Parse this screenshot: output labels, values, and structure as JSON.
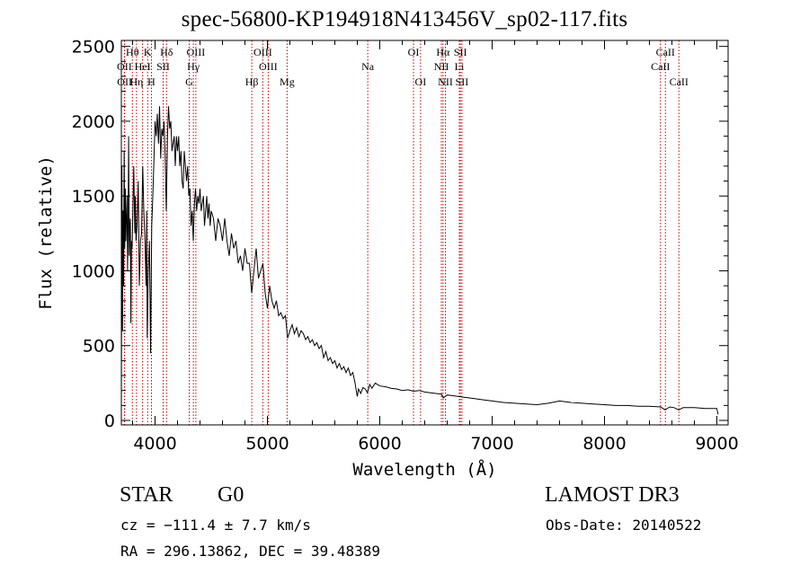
{
  "chart_data": {
    "type": "line",
    "title": "spec-56800-KP194918N413456V_sp02-117.fits",
    "xlabel": "Wavelength (Å)",
    "ylabel": "Flux (relative)",
    "xlim": [
      3700,
      9100
    ],
    "ylim": [
      -30,
      2540
    ],
    "x_ticks": [
      4000,
      5000,
      6000,
      7000,
      8000,
      9000
    ],
    "x_tick_labels": [
      "4000",
      "5000",
      "6000",
      "7000",
      "8000",
      "9000"
    ],
    "y_ticks": [
      0,
      500,
      1000,
      1500,
      2000,
      2500
    ],
    "y_tick_labels": [
      "0",
      "500",
      "1000",
      "1500",
      "2000",
      "2500"
    ],
    "series": [
      {
        "name": "flux",
        "points": [
          [
            3700,
            10
          ],
          [
            3705,
            1700
          ],
          [
            3710,
            600
          ],
          [
            3715,
            1400
          ],
          [
            3720,
            900
          ],
          [
            3725,
            1800
          ],
          [
            3730,
            1150
          ],
          [
            3735,
            1550
          ],
          [
            3740,
            1200
          ],
          [
            3745,
            1350
          ],
          [
            3750,
            1500
          ],
          [
            3755,
            1000
          ],
          [
            3760,
            1250
          ],
          [
            3765,
            1900
          ],
          [
            3770,
            1100
          ],
          [
            3775,
            1300
          ],
          [
            3780,
            1350
          ],
          [
            3785,
            650
          ],
          [
            3790,
            1200
          ],
          [
            3795,
            1150
          ],
          [
            3800,
            1300
          ],
          [
            3810,
            1700
          ],
          [
            3820,
            1250
          ],
          [
            3825,
            1500
          ],
          [
            3830,
            1200
          ],
          [
            3840,
            1300
          ],
          [
            3850,
            1600
          ],
          [
            3860,
            900
          ],
          [
            3870,
            1200
          ],
          [
            3880,
            1250
          ],
          [
            3890,
            1700
          ],
          [
            3900,
            1400
          ],
          [
            3910,
            1200
          ],
          [
            3920,
            900
          ],
          [
            3925,
            1400
          ],
          [
            3930,
            550
          ],
          [
            3940,
            1000
          ],
          [
            3950,
            1200
          ],
          [
            3960,
            450
          ],
          [
            3970,
            1300
          ],
          [
            3980,
            1500
          ],
          [
            3990,
            1750
          ],
          [
            4000,
            2000
          ],
          [
            4010,
            1900
          ],
          [
            4020,
            2050
          ],
          [
            4030,
            1850
          ],
          [
            4040,
            2100
          ],
          [
            4050,
            1750
          ],
          [
            4060,
            1950
          ],
          [
            4070,
            1900
          ],
          [
            4080,
            2000
          ],
          [
            4090,
            1750
          ],
          [
            4100,
            1400
          ],
          [
            4110,
            1900
          ],
          [
            4120,
            2100
          ],
          [
            4130,
            1950
          ],
          [
            4140,
            2000
          ],
          [
            4150,
            1800
          ],
          [
            4160,
            1850
          ],
          [
            4170,
            1900
          ],
          [
            4180,
            1700
          ],
          [
            4190,
            1900
          ],
          [
            4200,
            1800
          ],
          [
            4210,
            1900
          ],
          [
            4220,
            1700
          ],
          [
            4230,
            1800
          ],
          [
            4240,
            1600
          ],
          [
            4250,
            1550
          ],
          [
            4260,
            1800
          ],
          [
            4270,
            1700
          ],
          [
            4280,
            1600
          ],
          [
            4290,
            1700
          ],
          [
            4300,
            1500
          ],
          [
            4310,
            1550
          ],
          [
            4320,
            1300
          ],
          [
            4330,
            1400
          ],
          [
            4340,
            1200
          ],
          [
            4350,
            1450
          ],
          [
            4360,
            1550
          ],
          [
            4370,
            1400
          ],
          [
            4380,
            1500
          ],
          [
            4390,
            1450
          ],
          [
            4400,
            1550
          ],
          [
            4410,
            1400
          ],
          [
            4420,
            1450
          ],
          [
            4430,
            1500
          ],
          [
            4440,
            1300
          ],
          [
            4450,
            1400
          ],
          [
            4460,
            1500
          ],
          [
            4470,
            1350
          ],
          [
            4480,
            1450
          ],
          [
            4490,
            1300
          ],
          [
            4500,
            1400
          ],
          [
            4520,
            1350
          ],
          [
            4540,
            1200
          ],
          [
            4560,
            1350
          ],
          [
            4580,
            1300
          ],
          [
            4600,
            1200
          ],
          [
            4620,
            1350
          ],
          [
            4640,
            1200
          ],
          [
            4660,
            1100
          ],
          [
            4680,
            1250
          ],
          [
            4700,
            1150
          ],
          [
            4720,
            1200
          ],
          [
            4740,
            1050
          ],
          [
            4760,
            1100
          ],
          [
            4780,
            1000
          ],
          [
            4800,
            1150
          ],
          [
            4820,
            1050
          ],
          [
            4840,
            1050
          ],
          [
            4860,
            850
          ],
          [
            4880,
            1000
          ],
          [
            4900,
            1150
          ],
          [
            4920,
            950
          ],
          [
            4940,
            1000
          ],
          [
            4960,
            1050
          ],
          [
            4980,
            850
          ],
          [
            5000,
            750
          ],
          [
            5020,
            900
          ],
          [
            5040,
            800
          ],
          [
            5060,
            750
          ],
          [
            5080,
            800
          ],
          [
            5100,
            700
          ],
          [
            5120,
            720
          ],
          [
            5140,
            680
          ],
          [
            5160,
            700
          ],
          [
            5180,
            550
          ],
          [
            5200,
            600
          ],
          [
            5220,
            640
          ],
          [
            5240,
            580
          ],
          [
            5260,
            620
          ],
          [
            5280,
            560
          ],
          [
            5300,
            600
          ],
          [
            5320,
            580
          ],
          [
            5340,
            540
          ],
          [
            5360,
            560
          ],
          [
            5380,
            520
          ],
          [
            5400,
            540
          ],
          [
            5420,
            500
          ],
          [
            5440,
            520
          ],
          [
            5460,
            480
          ],
          [
            5480,
            500
          ],
          [
            5500,
            420
          ],
          [
            5520,
            460
          ],
          [
            5540,
            400
          ],
          [
            5560,
            420
          ],
          [
            5580,
            380
          ],
          [
            5600,
            400
          ],
          [
            5620,
            350
          ],
          [
            5640,
            380
          ],
          [
            5660,
            340
          ],
          [
            5680,
            360
          ],
          [
            5700,
            320
          ],
          [
            5720,
            350
          ],
          [
            5740,
            300
          ],
          [
            5760,
            320
          ],
          [
            5780,
            250
          ],
          [
            5790,
            200
          ],
          [
            5800,
            160
          ],
          [
            5810,
            210
          ],
          [
            5830,
            180
          ],
          [
            5850,
            220
          ],
          [
            5870,
            210
          ],
          [
            5890,
            185
          ],
          [
            5910,
            240
          ],
          [
            5930,
            215
          ],
          [
            5960,
            250
          ],
          [
            6000,
            230
          ],
          [
            6050,
            225
          ],
          [
            6100,
            215
          ],
          [
            6150,
            210
          ],
          [
            6200,
            200
          ],
          [
            6250,
            205
          ],
          [
            6300,
            195
          ],
          [
            6350,
            200
          ],
          [
            6400,
            190
          ],
          [
            6450,
            185
          ],
          [
            6500,
            180
          ],
          [
            6550,
            175
          ],
          [
            6565,
            150
          ],
          [
            6600,
            170
          ],
          [
            6650,
            165
          ],
          [
            6700,
            160
          ],
          [
            6750,
            155
          ],
          [
            6800,
            150
          ],
          [
            6900,
            140
          ],
          [
            7000,
            130
          ],
          [
            7100,
            120
          ],
          [
            7200,
            115
          ],
          [
            7300,
            110
          ],
          [
            7400,
            105
          ],
          [
            7500,
            115
          ],
          [
            7600,
            130
          ],
          [
            7700,
            120
          ],
          [
            7800,
            115
          ],
          [
            7900,
            110
          ],
          [
            8000,
            105
          ],
          [
            8100,
            100
          ],
          [
            8200,
            100
          ],
          [
            8300,
            95
          ],
          [
            8400,
            95
          ],
          [
            8500,
            90
          ],
          [
            8540,
            70
          ],
          [
            8580,
            90
          ],
          [
            8620,
            85
          ],
          [
            8660,
            70
          ],
          [
            8700,
            85
          ],
          [
            8800,
            85
          ],
          [
            8900,
            80
          ],
          [
            9000,
            80
          ],
          [
            9010,
            40
          ]
        ]
      }
    ],
    "lines": [
      {
        "label": "Hθ",
        "wave": 3798,
        "row": 1
      },
      {
        "label": "OII",
        "wave": 3727,
        "row": 2
      },
      {
        "label": "OII",
        "wave": 3729,
        "row": 3
      },
      {
        "label": "Hη",
        "wave": 3835,
        "row": 3
      },
      {
        "label": "K",
        "wave": 3934,
        "row": 1
      },
      {
        "label": "HeI",
        "wave": 3889,
        "row": 2
      },
      {
        "label": "H",
        "wave": 3968,
        "row": 3
      },
      {
        "label": "SII",
        "wave": 4072,
        "row": 2
      },
      {
        "label": "Hδ",
        "wave": 4102,
        "row": 1
      },
      {
        "label": "OIII",
        "wave": 4363,
        "row": 1
      },
      {
        "label": "Hγ",
        "wave": 4341,
        "row": 2
      },
      {
        "label": "G",
        "wave": 4304,
        "row": 3
      },
      {
        "label": "OIII",
        "wave": 4959,
        "row": 1
      },
      {
        "label": "OIII",
        "wave": 5007,
        "row": 2
      },
      {
        "label": "Hβ",
        "wave": 4861,
        "row": 3
      },
      {
        "label": "Mg",
        "wave": 5175,
        "row": 3
      },
      {
        "label": "Na",
        "wave": 5893,
        "row": 2
      },
      {
        "label": "OI",
        "wave": 6300,
        "row": 1
      },
      {
        "label": "OI",
        "wave": 6363,
        "row": 3
      },
      {
        "label": "Hα",
        "wave": 6563,
        "row": 1
      },
      {
        "label": "NII",
        "wave": 6548,
        "row": 2
      },
      {
        "label": "NII",
        "wave": 6584,
        "row": 3
      },
      {
        "label": "SII",
        "wave": 6717,
        "row": 1
      },
      {
        "label": "Li",
        "wave": 6708,
        "row": 2
      },
      {
        "label": "SII",
        "wave": 6731,
        "row": 3
      },
      {
        "label": "CaII",
        "wave": 8542,
        "row": 1
      },
      {
        "label": "CaII",
        "wave": 8498,
        "row": 2
      },
      {
        "label": "CaII",
        "wave": 8662,
        "row": 3
      }
    ]
  },
  "footer": {
    "object_class": "STAR",
    "subclass": "G0",
    "survey": "LAMOST DR3",
    "cz": "cz = −111.4 ± 7.7 km/s",
    "obs_date": "Obs-Date: 20140522",
    "coords": "RA = 296.13862, DEC =  39.48389"
  },
  "colors": {
    "line_marker": "#c00000",
    "spectrum": "#000000",
    "axes": "#000000"
  }
}
